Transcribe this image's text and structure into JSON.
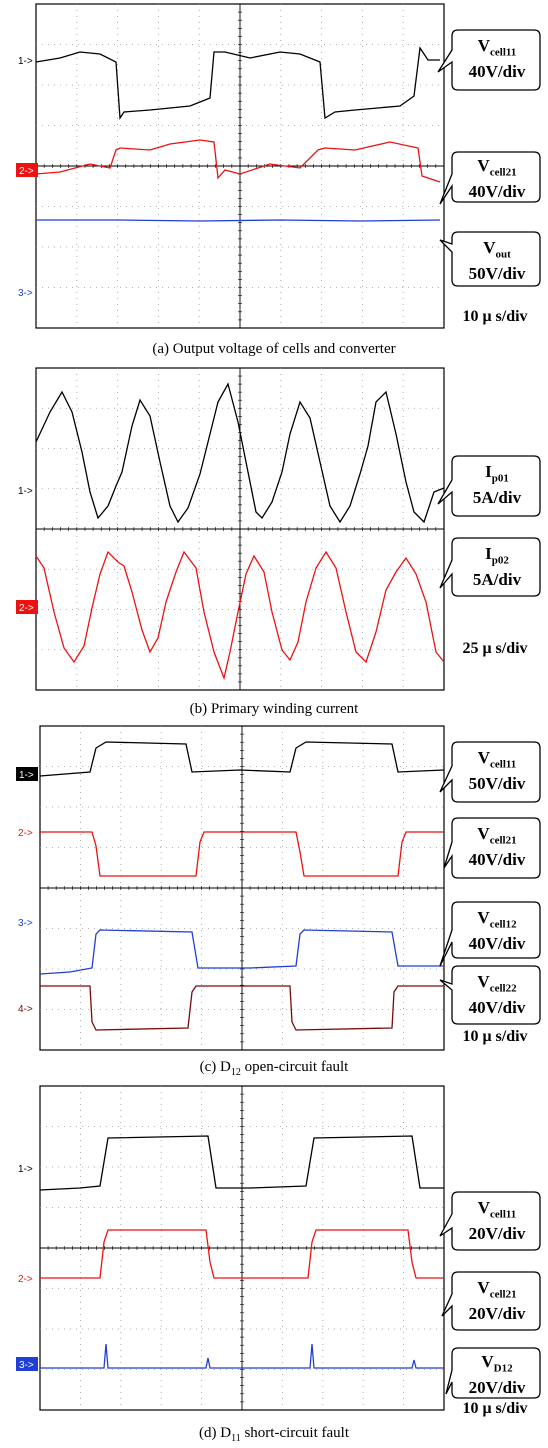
{
  "colors": {
    "ch1": "#000000",
    "ch2": "#ee1111",
    "ch3": "#1f3fd6",
    "ch4": "#7a0a0a",
    "grid": "#999999"
  },
  "chart_data": [
    {
      "type": "line",
      "caption": "(a) Output voltage of cells and converter",
      "timebase": "10 μ s/div",
      "series": [
        {
          "marker": "1->",
          "marker_style": "plain",
          "color": "#000000",
          "name": "V",
          "sub": "cell11",
          "scale": "40V/div"
        },
        {
          "marker": "2->",
          "marker_style": "box",
          "color": "#ee1111",
          "name": "V",
          "sub": "cell21",
          "scale": "40V/div"
        },
        {
          "marker": "3->",
          "marker_style": "plain",
          "color": "#1f3fd6",
          "name": "V",
          "sub": "out",
          "scale": "50V/div"
        }
      ]
    },
    {
      "type": "line",
      "caption": "(b) Primary winding current",
      "timebase": "25 μ s/div",
      "series": [
        {
          "marker": "1->",
          "marker_style": "plain",
          "color": "#000000",
          "name": "I",
          "sub": "p01",
          "scale": "5A/div"
        },
        {
          "marker": "2->",
          "marker_style": "box",
          "color": "#ee1111",
          "name": "I",
          "sub": "p02",
          "scale": "5A/div"
        }
      ]
    },
    {
      "type": "line",
      "caption_pre": "(c) D",
      "caption_sub": "12",
      "caption_post": " open-circuit fault",
      "timebase": "10 μ s/div",
      "series": [
        {
          "marker": "1->",
          "marker_style": "box",
          "color": "#000000",
          "name": "V",
          "sub": "cell11",
          "scale": "50V/div"
        },
        {
          "marker": "2->",
          "marker_style": "plain",
          "color": "#ee1111",
          "name": "V",
          "sub": "cell21",
          "scale": "40V/div"
        },
        {
          "marker": "3->",
          "marker_style": "plain",
          "color": "#1f3fd6",
          "name": "V",
          "sub": "cell12",
          "scale": "40V/div"
        },
        {
          "marker": "4->",
          "marker_style": "plain",
          "color": "#7a0a0a",
          "name": "V",
          "sub": "cell22",
          "scale": "40V/div"
        }
      ]
    },
    {
      "type": "line",
      "caption_pre": "(d) D",
      "caption_sub": "11",
      "caption_post": " short-circuit fault",
      "timebase": "10 μ s/div",
      "series": [
        {
          "marker": "1->",
          "marker_style": "plain",
          "color": "#000000",
          "name": "V",
          "sub": "cell11",
          "scale": "20V/div"
        },
        {
          "marker": "2->",
          "marker_style": "plain",
          "color": "#ee1111",
          "name": "V",
          "sub": "cell21",
          "scale": "20V/div"
        },
        {
          "marker": "3->",
          "marker_style": "box",
          "color": "#1f3fd6",
          "name": "V",
          "sub": "D12",
          "scale": "20V/div"
        }
      ]
    }
  ]
}
